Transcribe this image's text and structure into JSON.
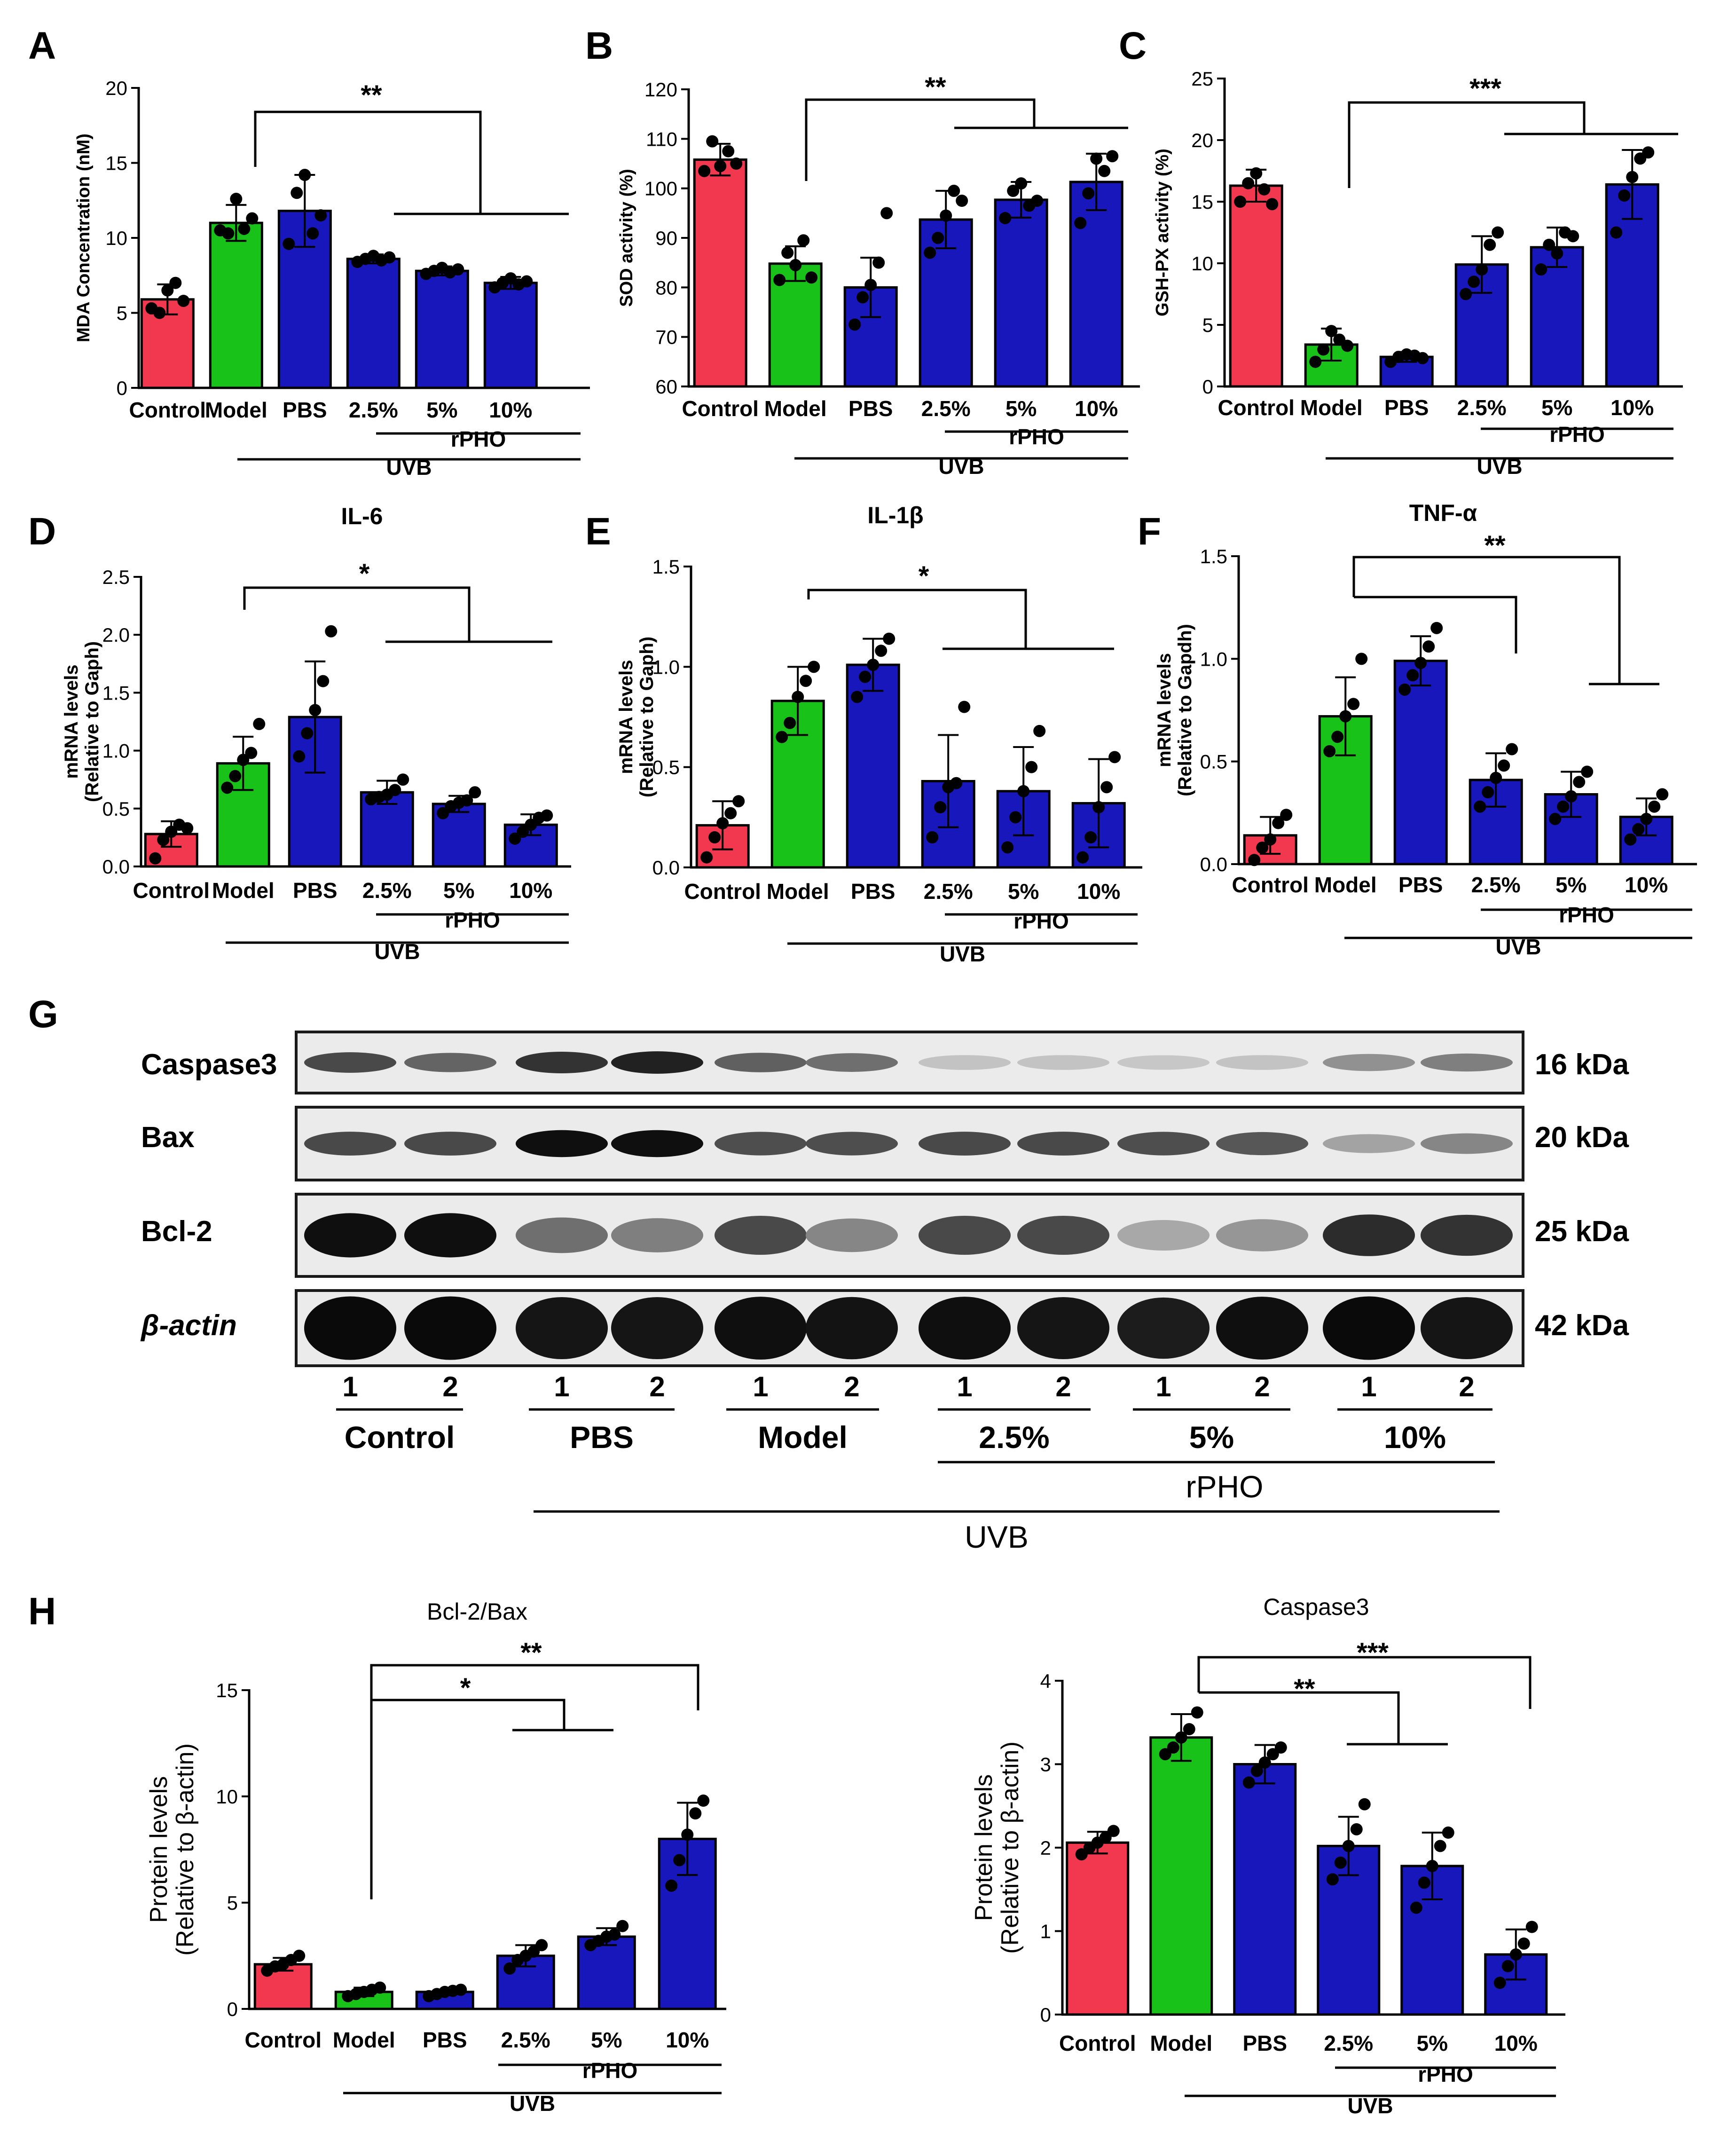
{
  "colors": {
    "control": "#f2384f",
    "model": "#19c219",
    "treated": "#1717bb",
    "ink": "#000000"
  },
  "group_labels": [
    "Control",
    "Model",
    "PBS",
    "2.5%",
    "5%",
    "10%"
  ],
  "rpho_label": "rPHO",
  "uvb_label": "UVB",
  "chart_data": [
    {
      "panel": "A",
      "type": "bar",
      "title": "",
      "ylabel": "MDA Concentration (nM)",
      "categories": [
        "Control",
        "Model",
        "PBS",
        "2.5%",
        "5%",
        "10%"
      ],
      "values": [
        5.9,
        11.0,
        11.8,
        8.6,
        7.8,
        7.0
      ],
      "errors": [
        1.0,
        1.2,
        2.4,
        0.3,
        0.3,
        0.4
      ],
      "points": [
        [
          5.3,
          5.0,
          6.5,
          7.0,
          5.8
        ],
        [
          10.5,
          10.3,
          12.6,
          10.6,
          11.3
        ],
        [
          9.6,
          13.0,
          14.2,
          10.3,
          11.5
        ],
        [
          8.4,
          8.6,
          8.8,
          8.5,
          8.7
        ],
        [
          7.6,
          7.8,
          8.0,
          7.7,
          7.9
        ],
        [
          6.7,
          7.0,
          7.3,
          6.9,
          7.1
        ]
      ],
      "ylim": [
        0,
        20
      ],
      "yticks": [
        0,
        5,
        10,
        15,
        20
      ],
      "significance": [
        {
          "label": "**"
        }
      ]
    },
    {
      "panel": "B",
      "type": "bar",
      "title": "",
      "ylabel": "SOD activity (%)",
      "categories": [
        "Control",
        "Model",
        "PBS",
        "2.5%",
        "5%",
        "10%"
      ],
      "values": [
        105.8,
        84.8,
        80.0,
        93.7,
        97.7,
        101.3
      ],
      "errors": [
        3.2,
        3.5,
        6.0,
        5.8,
        3.6,
        5.7
      ],
      "points": [
        [
          103.5,
          109.5,
          104.5,
          107.5,
          105.0
        ],
        [
          81.5,
          87.0,
          84.5,
          89.5,
          82.0
        ],
        [
          72.5,
          78.0,
          80.5,
          85.0,
          95.0
        ],
        [
          87.0,
          90.0,
          94.5,
          99.5,
          97.5
        ],
        [
          94.0,
          99.5,
          101.0,
          96.5,
          97.5
        ],
        [
          93.0,
          99.0,
          106.0,
          103.5,
          106.5
        ]
      ],
      "ylim": [
        60,
        120
      ],
      "yticks": [
        60,
        70,
        80,
        90,
        100,
        110,
        120
      ],
      "significance": [
        {
          "label": "**"
        }
      ]
    },
    {
      "panel": "C",
      "type": "bar",
      "title": "",
      "ylabel": "GSH-PX activity (%)",
      "categories": [
        "Control",
        "Model",
        "PBS",
        "2.5%",
        "5%",
        "10%"
      ],
      "values": [
        16.3,
        3.4,
        2.4,
        9.9,
        11.3,
        16.4
      ],
      "errors": [
        1.3,
        1.3,
        0.4,
        2.3,
        1.6,
        2.8
      ],
      "points": [
        [
          15.0,
          16.5,
          17.3,
          16.0,
          14.8
        ],
        [
          2.0,
          3.0,
          4.5,
          3.8,
          3.3
        ],
        [
          2.0,
          2.4,
          2.6,
          2.5,
          2.3
        ],
        [
          7.5,
          8.5,
          9.5,
          11.5,
          12.5
        ],
        [
          9.5,
          11.5,
          10.8,
          12.5,
          12.2
        ],
        [
          12.5,
          15.5,
          17.0,
          18.5,
          19.0
        ]
      ],
      "ylim": [
        0,
        25
      ],
      "yticks": [
        0,
        5,
        10,
        15,
        20,
        25
      ],
      "significance": [
        {
          "label": "***"
        }
      ]
    },
    {
      "panel": "D",
      "type": "bar",
      "title": "IL-6",
      "ylabel": "mRNA levels (Relative to Gaph)",
      "categories": [
        "Control",
        "Model",
        "PBS",
        "2.5%",
        "5%",
        "10%"
      ],
      "values": [
        0.28,
        0.89,
        1.29,
        0.64,
        0.54,
        0.36
      ],
      "errors": [
        0.11,
        0.23,
        0.48,
        0.1,
        0.07,
        0.09
      ],
      "points": [
        [
          0.07,
          0.23,
          0.3,
          0.36,
          0.33
        ],
        [
          0.68,
          0.78,
          0.92,
          0.98,
          1.23
        ],
        [
          0.95,
          1.15,
          1.35,
          1.6,
          2.03
        ],
        [
          0.58,
          0.6,
          0.62,
          0.66,
          0.75
        ],
        [
          0.46,
          0.52,
          0.55,
          0.57,
          0.64
        ],
        [
          0.24,
          0.3,
          0.36,
          0.42,
          0.44
        ]
      ],
      "ylim": [
        0,
        2.5
      ],
      "yticks": [
        0.0,
        0.5,
        1.0,
        1.5,
        2.0,
        2.5
      ],
      "significance": [
        {
          "label": "*"
        }
      ]
    },
    {
      "panel": "E",
      "type": "bar",
      "title": "IL-1β",
      "ylabel": "mRNA levels (Relative to Gaph)",
      "categories": [
        "Control",
        "Model",
        "PBS",
        "2.5%",
        "5%",
        "10%"
      ],
      "values": [
        0.21,
        0.83,
        1.01,
        0.43,
        0.38,
        0.32
      ],
      "errors": [
        0.12,
        0.17,
        0.13,
        0.23,
        0.22,
        0.22
      ],
      "points": [
        [
          0.05,
          0.15,
          0.22,
          0.27,
          0.33
        ],
        [
          0.65,
          0.72,
          0.85,
          0.93,
          1.0
        ],
        [
          0.85,
          0.95,
          1.01,
          1.08,
          1.14
        ],
        [
          0.15,
          0.3,
          0.4,
          0.42,
          0.8
        ],
        [
          0.1,
          0.25,
          0.38,
          0.5,
          0.68
        ],
        [
          0.05,
          0.15,
          0.3,
          0.4,
          0.55
        ]
      ],
      "ylim": [
        0,
        1.5
      ],
      "yticks": [
        0.0,
        0.5,
        1.0,
        1.5
      ],
      "significance": [
        {
          "label": "*"
        }
      ]
    },
    {
      "panel": "F",
      "type": "bar",
      "title": "TNF-α",
      "ylabel": "mRNA levels (Relative to Gapdh)",
      "categories": [
        "Control",
        "Model",
        "PBS",
        "2.5%",
        "5%",
        "10%"
      ],
      "values": [
        0.14,
        0.72,
        0.99,
        0.41,
        0.34,
        0.23
      ],
      "errors": [
        0.09,
        0.19,
        0.12,
        0.13,
        0.11,
        0.09
      ],
      "points": [
        [
          0.02,
          0.08,
          0.12,
          0.2,
          0.24
        ],
        [
          0.55,
          0.62,
          0.72,
          0.78,
          1.0
        ],
        [
          0.85,
          0.92,
          0.98,
          1.06,
          1.15
        ],
        [
          0.28,
          0.35,
          0.42,
          0.48,
          0.56
        ],
        [
          0.22,
          0.28,
          0.33,
          0.4,
          0.45
        ],
        [
          0.12,
          0.17,
          0.22,
          0.28,
          0.34
        ]
      ],
      "ylim": [
        0,
        1.5
      ],
      "yticks": [
        0.0,
        0.5,
        1.0,
        1.5
      ],
      "significance": [
        {
          "label": "**"
        }
      ]
    },
    {
      "panel": "H",
      "type": "bar",
      "title": "Bcl-2/Bax",
      "ylabel": "Protein levels (Relative to β-actin)",
      "categories": [
        "Control",
        "Model",
        "PBS",
        "2.5%",
        "5%",
        "10%"
      ],
      "values": [
        2.1,
        0.8,
        0.8,
        2.5,
        3.4,
        8.0
      ],
      "errors": [
        0.3,
        0.2,
        0.1,
        0.5,
        0.4,
        1.7
      ],
      "points": [
        [
          1.8,
          2.0,
          2.1,
          2.3,
          2.5
        ],
        [
          0.6,
          0.7,
          0.8,
          0.9,
          1.0
        ],
        [
          0.6,
          0.7,
          0.8,
          0.85,
          0.9
        ],
        [
          1.9,
          2.3,
          2.5,
          2.7,
          3.0
        ],
        [
          3.0,
          3.2,
          3.4,
          3.5,
          3.9
        ],
        [
          5.8,
          7.0,
          8.2,
          9.2,
          9.8
        ]
      ],
      "ylim": [
        0,
        15
      ],
      "yticks": [
        0,
        5,
        10,
        15
      ],
      "significance": [
        {
          "label": "*"
        },
        {
          "label": "**"
        }
      ]
    },
    {
      "panel": "H2",
      "type": "bar",
      "title": "Caspase3",
      "ylabel": "Protein levels (Relative to β-actin)",
      "categories": [
        "Control",
        "Model",
        "PBS",
        "2.5%",
        "5%",
        "10%"
      ],
      "values": [
        2.06,
        3.32,
        3.0,
        2.02,
        1.78,
        0.72
      ],
      "errors": [
        0.13,
        0.28,
        0.23,
        0.35,
        0.4,
        0.3
      ],
      "points": [
        [
          1.92,
          2.0,
          2.06,
          2.12,
          2.2
        ],
        [
          3.12,
          3.2,
          3.32,
          3.42,
          3.62
        ],
        [
          2.78,
          2.92,
          3.02,
          3.12,
          3.2
        ],
        [
          1.62,
          1.82,
          2.02,
          2.22,
          2.52
        ],
        [
          1.28,
          1.58,
          1.78,
          2.02,
          2.18
        ],
        [
          0.38,
          0.58,
          0.72,
          0.85,
          1.05
        ]
      ],
      "ylim": [
        0,
        4
      ],
      "yticks": [
        0,
        1,
        2,
        3,
        4
      ],
      "significance": [
        {
          "label": "**"
        },
        {
          "label": "***"
        }
      ]
    }
  ],
  "western_blot": {
    "panel": "G",
    "rows": [
      {
        "protein": "Caspase3",
        "kda": "16 kDa"
      },
      {
        "protein": "Bax",
        "kda": "20 kDa"
      },
      {
        "protein": "Bcl-2",
        "kda": "25 kDa"
      },
      {
        "protein": "β-actin",
        "kda": "42 kDa"
      }
    ],
    "lane_numbers": [
      "1",
      "2",
      "1",
      "2",
      "1",
      "2",
      "1",
      "2",
      "1",
      "2",
      "1",
      "2"
    ],
    "groups": [
      "Control",
      "PBS",
      "Model",
      "2.5%",
      "5%",
      "10%"
    ],
    "band_intensity": [
      [
        0.72,
        0.6,
        0.82,
        0.9,
        0.62,
        0.55,
        0.18,
        0.18,
        0.16,
        0.18,
        0.4,
        0.48
      ],
      [
        0.72,
        0.72,
        0.98,
        0.98,
        0.7,
        0.7,
        0.72,
        0.72,
        0.7,
        0.66,
        0.32,
        0.45
      ],
      [
        0.98,
        0.98,
        0.55,
        0.48,
        0.72,
        0.45,
        0.72,
        0.72,
        0.3,
        0.38,
        0.85,
        0.82
      ],
      [
        1.0,
        1.0,
        0.95,
        0.95,
        0.98,
        0.96,
        0.98,
        0.95,
        0.92,
        0.98,
        1.0,
        0.95
      ]
    ]
  }
}
